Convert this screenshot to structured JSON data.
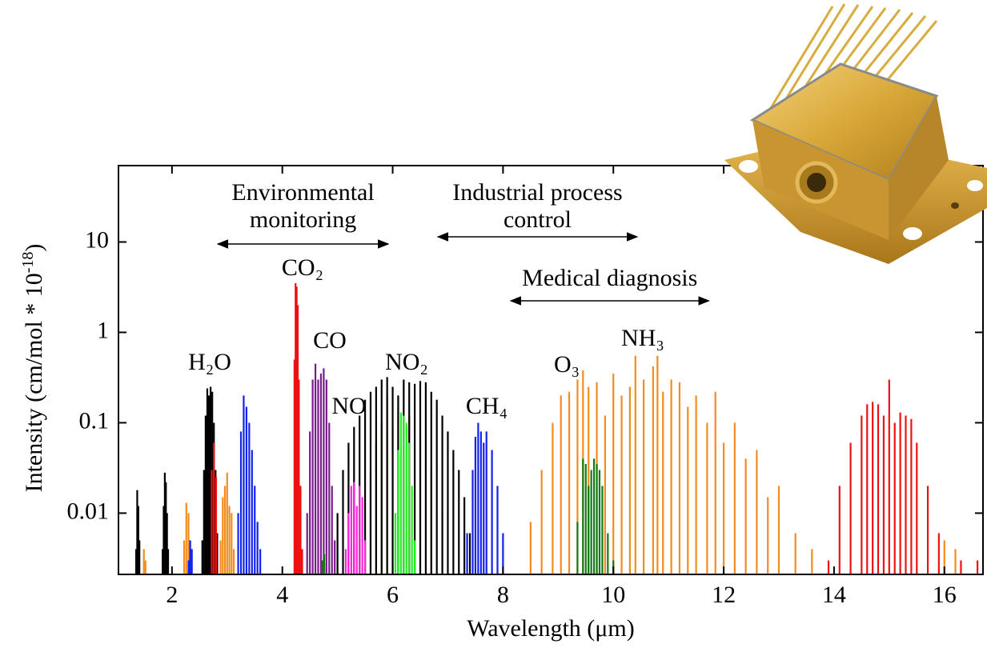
{
  "chart_data": {
    "type": "stem",
    "xlabel": "Wavelength (μm)",
    "ylabel": {
      "text": "Intensity (cm/mol * 10",
      "sup": "-18",
      "end": ")"
    },
    "xlim": [
      1.03,
      16.7
    ],
    "ylim": [
      0.0021,
      70
    ],
    "log_y": true,
    "xticks": [
      2,
      4,
      6,
      8,
      10,
      12,
      14,
      16
    ],
    "yticks": [
      0.01,
      0.1,
      1,
      10
    ],
    "annotations": [
      {
        "text": [
          "Environmental",
          "monitoring"
        ],
        "span": [
          2.83,
          5.92
        ]
      },
      {
        "text": [
          "Industrial process",
          "control"
        ],
        "span": [
          6.82,
          10.43
        ]
      },
      {
        "text": [
          "Medical diagnosis"
        ],
        "span": [
          8.14,
          11.73
        ]
      }
    ],
    "series": [
      {
        "name": "NH₃",
        "color": "#f28c1e",
        "x": [
          1.49,
          1.52,
          2.22,
          2.26,
          2.3,
          2.34,
          2.88,
          2.92,
          2.96,
          3.0,
          3.04,
          3.08,
          3.12,
          5.6,
          5.7,
          5.8,
          5.9,
          6.0,
          6.1,
          6.3,
          6.5,
          6.7,
          6.9,
          8.5,
          8.7,
          8.9,
          9.05,
          9.2,
          9.35,
          9.45,
          9.55,
          9.7,
          9.85,
          10.0,
          10.15,
          10.3,
          10.4,
          10.55,
          10.72,
          10.8,
          10.9,
          11.05,
          11.2,
          11.35,
          11.5,
          11.7,
          11.85,
          12.0,
          12.2,
          12.4,
          12.6,
          12.8,
          13.0,
          13.3,
          13.6,
          16.0,
          16.2
        ],
        "values": [
          0.004,
          0.003,
          0.005,
          0.013,
          0.01,
          0.004,
          0.005,
          0.015,
          0.02,
          0.028,
          0.012,
          0.01,
          0.004,
          0.03,
          0.06,
          0.1,
          0.2,
          0.09,
          0.15,
          0.12,
          0.07,
          0.03,
          0.01,
          0.008,
          0.03,
          0.1,
          0.2,
          0.22,
          0.3,
          0.38,
          0.25,
          0.28,
          0.12,
          0.35,
          0.2,
          0.25,
          0.55,
          0.3,
          0.42,
          0.55,
          0.22,
          0.3,
          0.28,
          0.15,
          0.2,
          0.1,
          0.22,
          0.06,
          0.1,
          0.04,
          0.05,
          0.015,
          0.02,
          0.006,
          0.004,
          0.005,
          0.004
        ]
      },
      {
        "name": "H₂O",
        "color": "#000000",
        "x": [
          1.35,
          1.37,
          1.39,
          1.41,
          1.83,
          1.85,
          1.87,
          1.89,
          1.91,
          1.93,
          2.55,
          2.58,
          2.61,
          2.64,
          2.67,
          2.7,
          2.73,
          2.76,
          2.79,
          2.82,
          5.0,
          5.1,
          5.2,
          5.3,
          5.4,
          5.5,
          5.6,
          5.7,
          5.8,
          5.9,
          6.0,
          6.1,
          6.2,
          6.3,
          6.4,
          6.5,
          6.6,
          6.7,
          6.8,
          6.9,
          7.0,
          7.1,
          7.2,
          7.3,
          7.4
        ],
        "values": [
          0.004,
          0.018,
          0.012,
          0.005,
          0.004,
          0.012,
          0.028,
          0.022,
          0.01,
          0.004,
          0.005,
          0.03,
          0.12,
          0.24,
          0.2,
          0.25,
          0.22,
          0.1,
          0.03,
          0.006,
          0.01,
          0.03,
          0.06,
          0.09,
          0.12,
          0.18,
          0.22,
          0.25,
          0.3,
          0.32,
          0.25,
          0.2,
          0.3,
          0.28,
          0.27,
          0.29,
          0.28,
          0.22,
          0.18,
          0.12,
          0.08,
          0.05,
          0.03,
          0.015,
          0.006
        ]
      },
      {
        "name": "CO₂",
        "color": "#ee1111",
        "x": [
          2.72,
          2.76,
          2.8,
          4.22,
          4.24,
          4.26,
          4.28,
          4.3,
          4.33,
          4.36,
          13.9,
          14.1,
          14.3,
          14.5,
          14.6,
          14.7,
          14.8,
          14.9,
          15.0,
          15.1,
          15.2,
          15.3,
          15.4,
          15.5,
          15.7,
          15.9,
          16.3,
          16.6
        ],
        "values": [
          0.03,
          0.06,
          0.025,
          0.5,
          3.5,
          3.2,
          2.0,
          0.3,
          0.02,
          0.004,
          0.003,
          0.02,
          0.06,
          0.12,
          0.16,
          0.17,
          0.16,
          0.12,
          0.3,
          0.1,
          0.13,
          0.12,
          0.11,
          0.06,
          0.02,
          0.006,
          0.003,
          0.003
        ]
      },
      {
        "name": "CH₄",
        "color": "#1122ee",
        "x": [
          2.3,
          2.33,
          2.36,
          3.2,
          3.25,
          3.3,
          3.35,
          3.4,
          3.45,
          3.5,
          3.55,
          3.6,
          7.35,
          7.45,
          7.5,
          7.55,
          7.6,
          7.65,
          7.7,
          7.8,
          7.9,
          8.0
        ],
        "values": [
          0.003,
          0.005,
          0.004,
          0.01,
          0.08,
          0.2,
          0.15,
          0.1,
          0.05,
          0.02,
          0.008,
          0.004,
          0.006,
          0.03,
          0.07,
          0.1,
          0.08,
          0.06,
          0.08,
          0.05,
          0.02,
          0.006
        ]
      },
      {
        "name": "CO",
        "color": "#7a1a8c",
        "x": [
          4.45,
          4.5,
          4.55,
          4.6,
          4.65,
          4.7,
          4.75,
          4.8,
          4.85,
          4.9,
          4.95
        ],
        "values": [
          0.01,
          0.08,
          0.3,
          0.45,
          0.3,
          0.35,
          0.4,
          0.3,
          0.1,
          0.02,
          0.005
        ]
      },
      {
        "name": "NO",
        "color": "#ff22dd",
        "x": [
          5.15,
          5.2,
          5.25,
          5.3,
          5.35,
          5.4,
          5.45,
          5.5
        ],
        "values": [
          0.004,
          0.01,
          0.02,
          0.022,
          0.012,
          0.02,
          0.015,
          0.005
        ]
      },
      {
        "name": "NO₂",
        "color": "#22ee22",
        "x": [
          6.05,
          6.1,
          6.15,
          6.2,
          6.25,
          6.3,
          6.35,
          6.4
        ],
        "values": [
          0.01,
          0.05,
          0.13,
          0.12,
          0.1,
          0.06,
          0.02,
          0.005
        ]
      },
      {
        "name": "O₃",
        "color": "#117a11",
        "x": [
          4.72,
          4.76,
          9.35,
          9.45,
          9.5,
          9.55,
          9.6,
          9.65,
          9.7,
          9.75,
          9.8,
          9.9,
          10.0
        ],
        "values": [
          0.003,
          0.0035,
          0.008,
          0.04,
          0.035,
          0.02,
          0.03,
          0.04,
          0.035,
          0.03,
          0.02,
          0.006,
          0.003
        ]
      }
    ]
  }
}
